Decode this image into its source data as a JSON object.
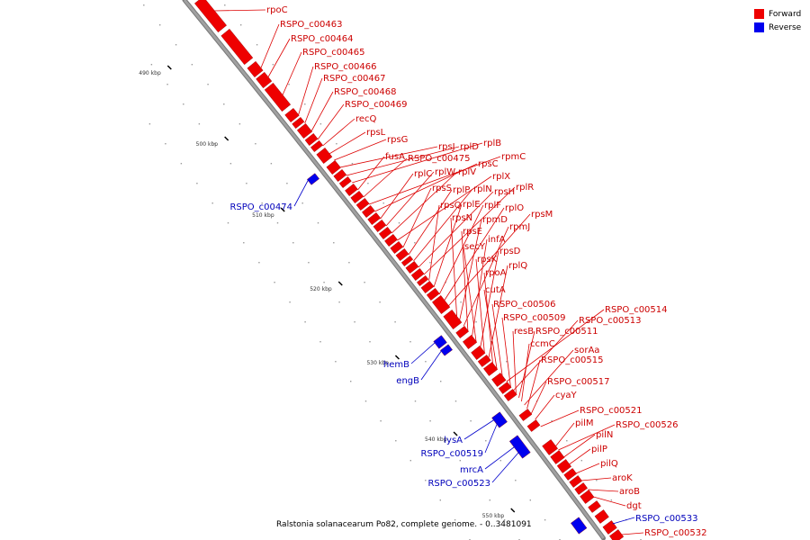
{
  "colors": {
    "forward": "#ee0000",
    "reverse": "#0000ee",
    "backbone": "#a0a0a0",
    "leader_forward": "#dd0000",
    "leader_reverse": "#0000cc"
  },
  "legend": [
    {
      "label": "Forward",
      "color": "#ee0000"
    },
    {
      "label": "Reverse",
      "color": "#0000ee"
    }
  ],
  "caption": "Ralstonia solanacearum Po82, complete genome. - 0..3481091",
  "scale_ticks": [
    "490 kbp",
    "500 kbp",
    "510 kbp",
    "520 kbp",
    "530 kbp",
    "540 kbp",
    "550 kbp"
  ],
  "forward_labels": [
    "rpoC",
    "RSPO_c00463",
    "RSPO_c00464",
    "RSPO_c00465",
    "RSPO_c00466",
    "RSPO_c00467",
    "RSPO_c00468",
    "RSPO_c00469",
    "recQ",
    "rpsL",
    "rpsG",
    "rpsJ",
    "rplD",
    "rplB",
    "fusA",
    "RSPO_c00475",
    "rpmC",
    "rpsC",
    "rplC",
    "rplW",
    "rplV",
    "rplX",
    "rpsS",
    "rplP",
    "rplN",
    "rpsH",
    "rplR",
    "rpsQ",
    "rplE",
    "rplF",
    "rplO",
    "rpsM",
    "rpsN",
    "rpmD",
    "rpmJ",
    "rpsE",
    "infA",
    "secY",
    "rpsD",
    "rpsK",
    "rplQ",
    "rpoA",
    "cutA",
    "RSPO_c00506",
    "RSPO_c00514",
    "RSPO_c00509",
    "RSPO_c00513",
    "resB",
    "RSPO_c00511",
    "ccmC",
    "sorAa",
    "RSPO_c00515",
    "RSPO_c00517",
    "cyaY",
    "RSPO_c00521",
    "pilM",
    "RSPO_c00526",
    "pilN",
    "pilP",
    "pilQ",
    "aroK",
    "aroB",
    "dgt",
    "RSPO_c00532"
  ],
  "reverse_labels": [
    "RSPO_c00474",
    "hemB",
    "engB",
    "lysA",
    "RSPO_c00519",
    "mrcA",
    "RSPO_c00523",
    "RSPO_c00533"
  ]
}
